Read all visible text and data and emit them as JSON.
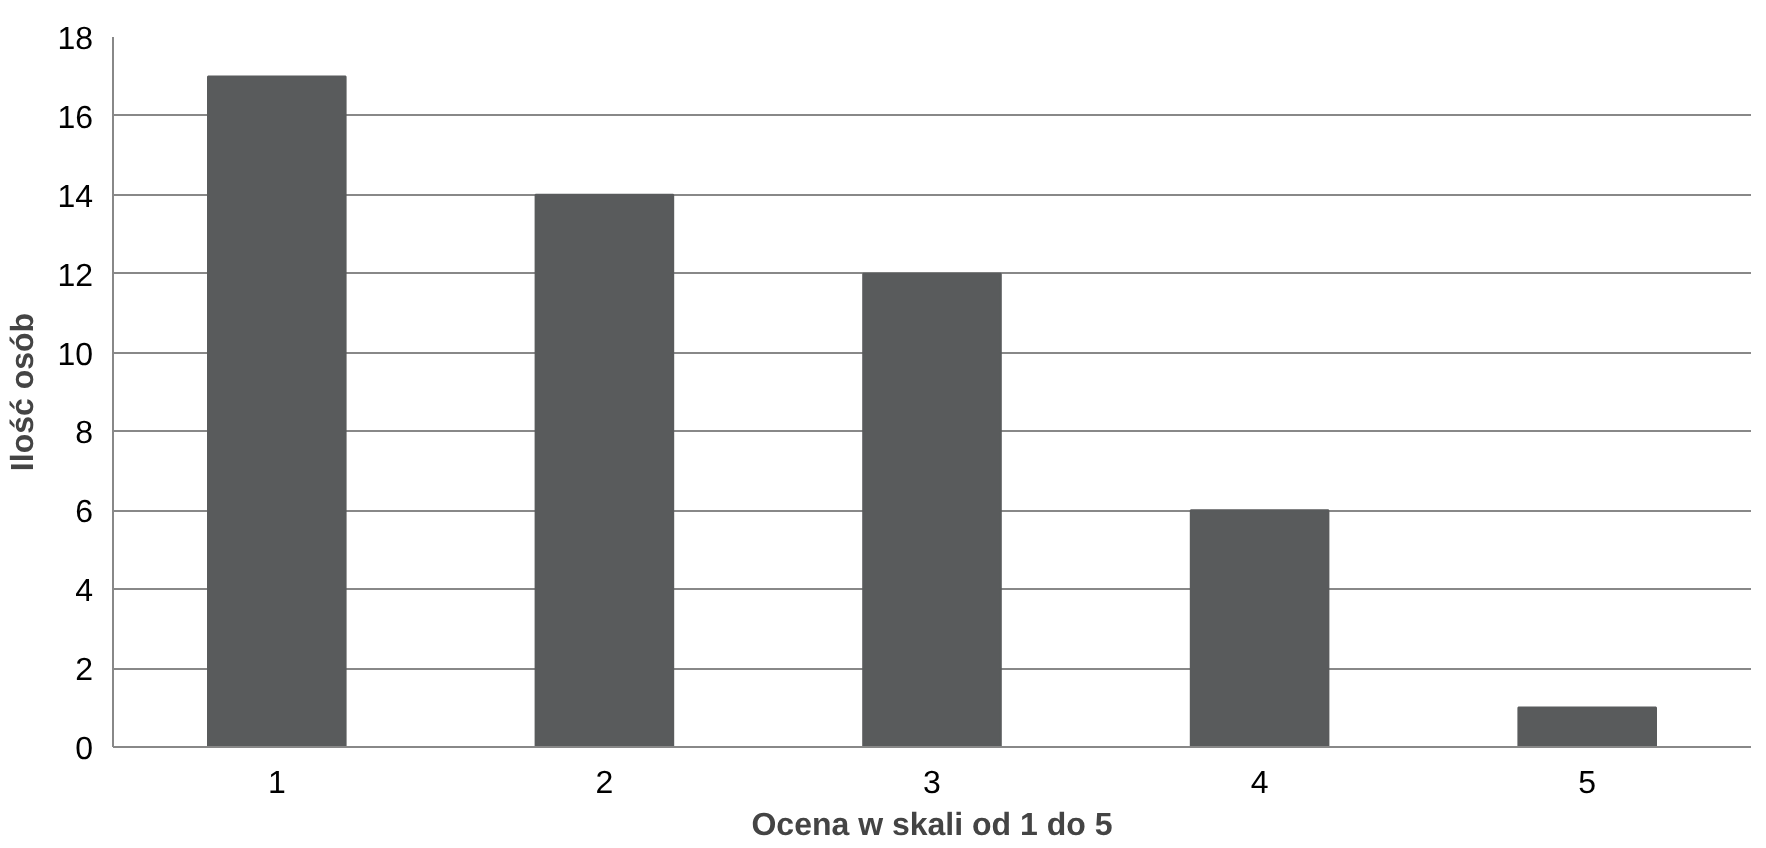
{
  "chart_data": {
    "type": "bar",
    "xlabel": "Ocena w skali od 1 do 5",
    "ylabel": "Ilość osób",
    "categories": [
      "1",
      "2",
      "3",
      "4",
      "5"
    ],
    "values": [
      17,
      14,
      12,
      6,
      1
    ],
    "color": "#595b5c",
    "ylim": [
      0,
      18
    ],
    "yticks": [
      0,
      2,
      4,
      6,
      8,
      10,
      12,
      14,
      16,
      18
    ],
    "grid": "y"
  }
}
